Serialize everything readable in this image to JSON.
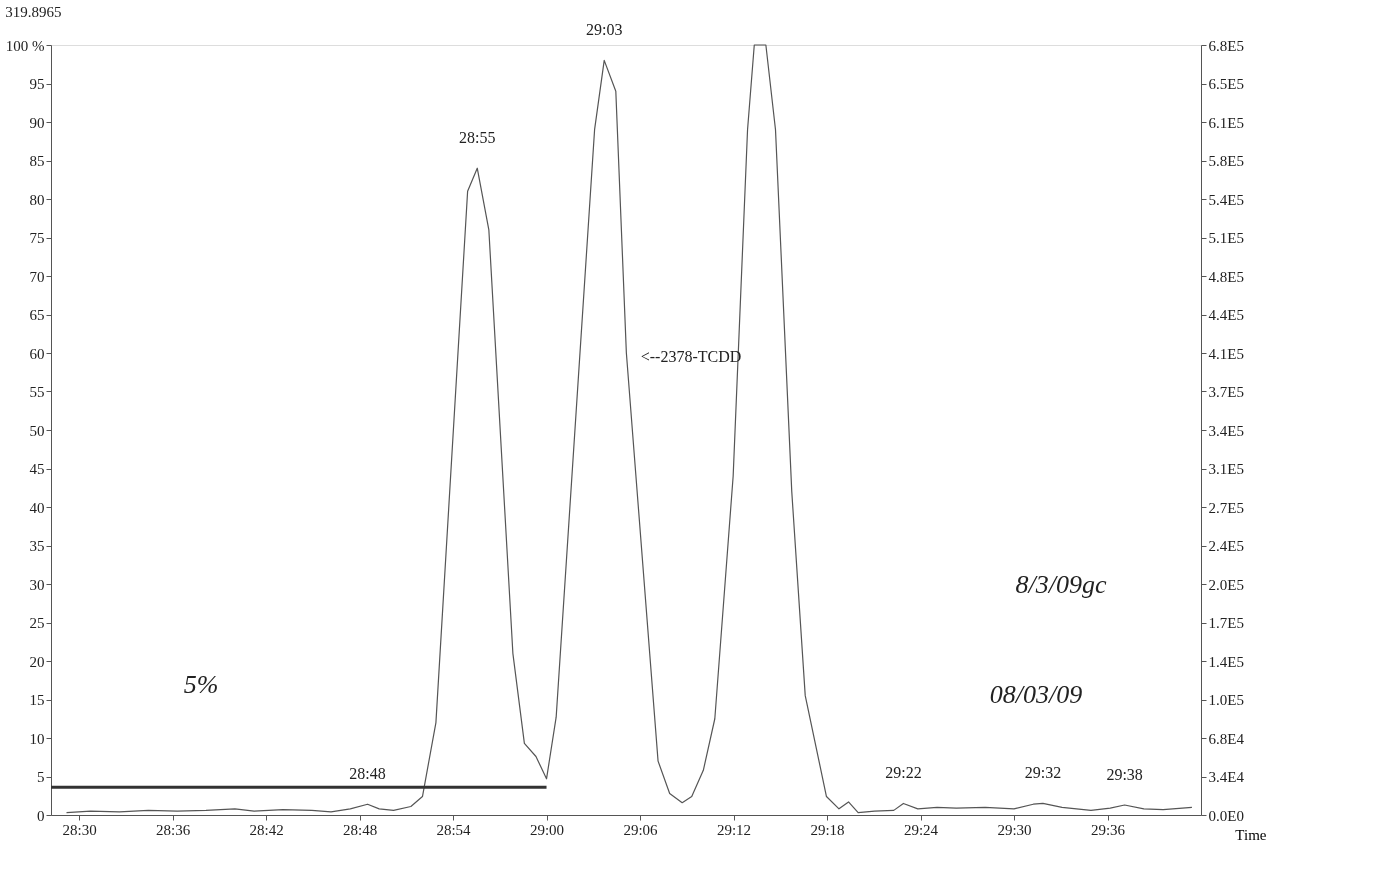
{
  "chart_data": {
    "type": "line",
    "title": "319.8965",
    "xlabel": "Time",
    "xlim": [
      28.47,
      29.7
    ],
    "ylim": [
      0,
      100
    ],
    "y2lim": [
      0,
      680000
    ],
    "xticks": [
      {
        "value": 28.5,
        "label": "28:30"
      },
      {
        "value": 28.6,
        "label": "28:36"
      },
      {
        "value": 28.7,
        "label": "28:42"
      },
      {
        "value": 28.8,
        "label": "28:48"
      },
      {
        "value": 28.9,
        "label": "28:54"
      },
      {
        "value": 29.0,
        "label": "29:00"
      },
      {
        "value": 29.1,
        "label": "29:06"
      },
      {
        "value": 29.2,
        "label": "29:12"
      },
      {
        "value": 29.3,
        "label": "29:18"
      },
      {
        "value": 29.4,
        "label": "29:24"
      },
      {
        "value": 29.5,
        "label": "29:30"
      },
      {
        "value": 29.6,
        "label": "29:36"
      }
    ],
    "yticks": [
      0,
      5,
      10,
      15,
      20,
      25,
      30,
      35,
      40,
      45,
      50,
      55,
      60,
      65,
      70,
      75,
      80,
      85,
      90,
      95,
      {
        "value": 100,
        "label": "100 %"
      }
    ],
    "y2ticks": [
      {
        "value": 0,
        "label": "0.0E0"
      },
      {
        "value": 34000,
        "label": "3.4E4"
      },
      {
        "value": 68000,
        "label": "6.8E4"
      },
      {
        "value": 102000,
        "label": "1.0E5"
      },
      {
        "value": 136000,
        "label": "1.4E5"
      },
      {
        "value": 170000,
        "label": "1.7E5"
      },
      {
        "value": 204000,
        "label": "2.0E5"
      },
      {
        "value": 238000,
        "label": "2.4E5"
      },
      {
        "value": 272000,
        "label": "2.7E5"
      },
      {
        "value": 306000,
        "label": "3.1E5"
      },
      {
        "value": 340000,
        "label": "3.4E5"
      },
      {
        "value": 374000,
        "label": "3.7E5"
      },
      {
        "value": 408000,
        "label": "4.1E5"
      },
      {
        "value": 442000,
        "label": "4.4E5"
      },
      {
        "value": 476000,
        "label": "4.8E5"
      },
      {
        "value": 510000,
        "label": "5.1E5"
      },
      {
        "value": 544000,
        "label": "5.4E5"
      },
      {
        "value": 578000,
        "label": "5.8E5"
      },
      {
        "value": 612000,
        "label": "6.1E5"
      },
      {
        "value": 646000,
        "label": "6.5E5"
      },
      {
        "value": 680000,
        "label": "6.8E5"
      }
    ],
    "grid": false,
    "line_style": "solid",
    "marker": "none",
    "series": [
      {
        "color": "#555555",
        "x": [
          28.4866,
          28.5123,
          28.5432,
          28.5741,
          28.6049,
          28.6358,
          28.6667,
          28.6872,
          28.7181,
          28.749,
          28.7695,
          28.7901,
          28.8086,
          28.821,
          28.8364,
          28.8549,
          28.8673,
          28.8817,
          28.9156,
          28.9259,
          28.9383,
          28.964,
          28.9763,
          28.9887,
          29.0,
          29.0103,
          29.0514,
          29.0617,
          29.0741,
          29.0854,
          29.1193,
          29.1317,
          29.1451,
          29.1553,
          29.1677,
          29.18,
          29.1996,
          29.215,
          29.2222,
          29.2346,
          29.2449,
          29.2623,
          29.2767,
          29.2994,
          29.3128,
          29.323,
          29.3333,
          29.3508,
          29.3714,
          29.3817,
          29.3971,
          29.4177,
          29.4383,
          29.4691,
          29.5,
          29.5206,
          29.5309,
          29.5514,
          29.5823,
          29.6029,
          29.6183,
          29.6389,
          29.6595,
          29.6903
        ],
        "values": [
          0.3,
          0.5,
          0.4,
          0.6,
          0.5,
          0.6,
          0.8,
          0.5,
          0.7,
          0.6,
          0.4,
          0.8,
          1.4,
          0.8,
          0.6,
          1.1,
          2.4,
          12,
          81,
          84,
          76,
          21,
          9.3,
          7.6,
          4.7,
          12.7,
          89,
          98,
          94,
          60,
          7,
          2.8,
          1.6,
          2.4,
          5.8,
          12.5,
          44,
          89,
          100,
          100,
          89,
          42,
          15.5,
          2.4,
          0.8,
          1.7,
          0.3,
          0.5,
          0.6,
          1.5,
          0.8,
          1.0,
          0.9,
          1.0,
          0.8,
          1.4,
          1.5,
          1.0,
          0.6,
          0.9,
          1.3,
          0.8,
          0.7,
          1.0
        ]
      },
      {
        "color": "#333333",
        "x": [
          28.47,
          29.0
        ],
        "values": [
          3.6,
          3.6
        ]
      }
    ],
    "annotations": [
      {
        "text": "28:48",
        "x": 28.8086,
        "y": 1.4
      },
      {
        "text": "28:55",
        "x": 28.9259,
        "y": 84
      },
      {
        "text": "29:03",
        "x": 29.0617,
        "y": 98
      },
      {
        "text": "29:22",
        "x": 29.3817,
        "y": 1.5
      },
      {
        "text": "29:32",
        "x": 29.5309,
        "y": 1.5
      },
      {
        "text": "29:38",
        "x": 29.6183,
        "y": 1.3
      },
      "<--2378-TCDD",
      "5%",
      "8/3/09gc",
      "08/03/09"
    ]
  }
}
